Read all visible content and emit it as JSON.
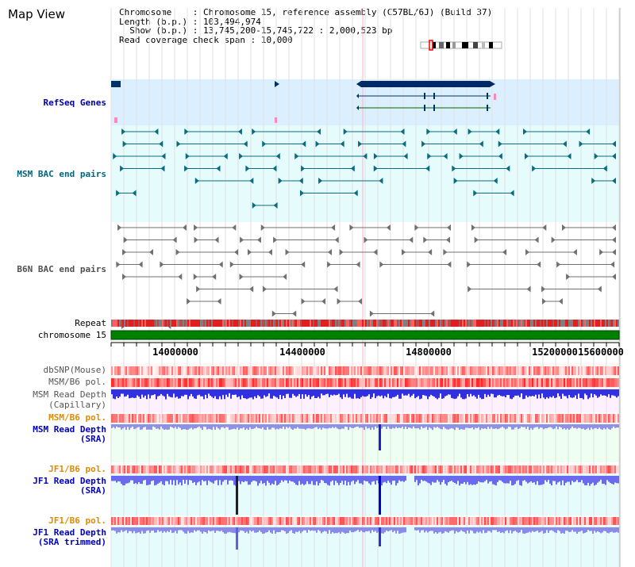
{
  "title": "Map View",
  "info": {
    "chromosome_label": "Chromosome",
    "chromosome_value": "Chromosome 15, reference assembly (C57BL/6J) (Build 37)",
    "length_label": "Length (b.p.)",
    "length_value": "103,494,974",
    "show_label": "Show (b.p.)",
    "show_value": "13,745,200-15,745,722 : 2,000,523 bp",
    "coverage_label": "Read coverage check span",
    "coverage_value": "10,000"
  },
  "tracks": {
    "refseq": "RefSeq Genes",
    "msm_bac": "MSM BAC end pairs",
    "b6n_bac": "B6N BAC end pairs",
    "repeat": "Repeat",
    "chromosome": "chromosome 15",
    "dbsnp": "dbSNP(Mouse)",
    "msm_b6_pol_1": "MSM/B6 pol.",
    "msm_depth_cap_1": "MSM Read Depth",
    "msm_depth_cap_2": "(Capillary)",
    "msm_b6_pol_2": "MSM/B6 pol.",
    "msm_depth_sra_1": "MSM Read Depth",
    "msm_depth_sra_2": "(SRA)",
    "jf1_b6_pol_1": "JF1/B6 pol.",
    "jf1_depth_sra_1": "JF1 Read Depth",
    "jf1_depth_sra_2": "(SRA)",
    "jf1_b6_pol_2": "JF1/B6 pol.",
    "jf1_depth_trim_1": "JF1 Read Depth",
    "jf1_depth_trim_2": "(SRA trimmed)"
  },
  "axis": {
    "ticks": [
      "14000000",
      "14400000",
      "14800000",
      "15200000",
      "15600000"
    ]
  },
  "colors": {
    "refseq_label": "#0000a0",
    "msm_label": "#006680",
    "b6n_label": "#505050",
    "orange_label": "#e08a00",
    "blue_label": "#0000c0",
    "chromosome_bar": "#008000"
  }
}
